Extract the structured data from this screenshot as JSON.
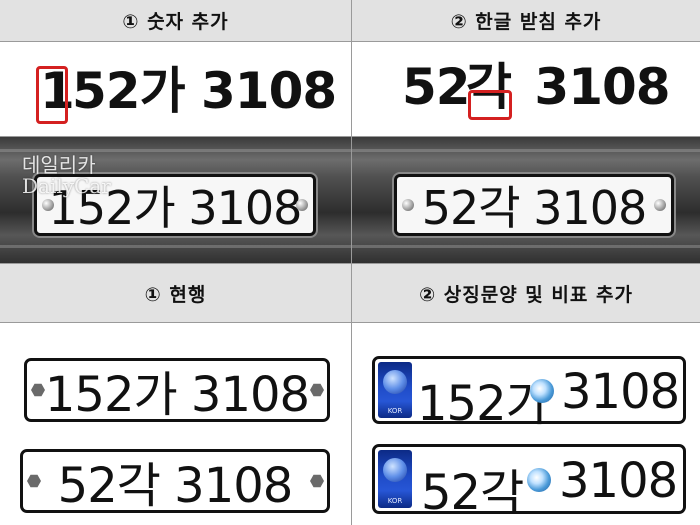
{
  "headers": {
    "top_left": "① 숫자 추가",
    "top_right": "② 한글 받침 추가",
    "mid_left": "① 현행",
    "mid_right": "② 상징문양 및 비표 추가"
  },
  "watermark": {
    "korean": "데일리카",
    "english": "DailyCar"
  },
  "big_text": {
    "left": {
      "highlight_digit": "1",
      "rest": "52가 3108"
    },
    "right": {
      "prefix": "52",
      "syllable": "각",
      "rest": " 3108"
    }
  },
  "photo_plates": {
    "left": "152가 3108",
    "right": "52각 3108"
  },
  "plates": {
    "current_long": "152가 3108",
    "current_short": "52각 3108",
    "symbol_long_prefix": "152가",
    "symbol_long_suffix": "3108",
    "symbol_short_prefix": "52각",
    "symbol_short_suffix": "3108",
    "symbol_label": "KOR"
  },
  "colors": {
    "header_bg": "#e2e2e2",
    "highlight": "#d42020",
    "symbol_blue": "#1f4cc7"
  }
}
